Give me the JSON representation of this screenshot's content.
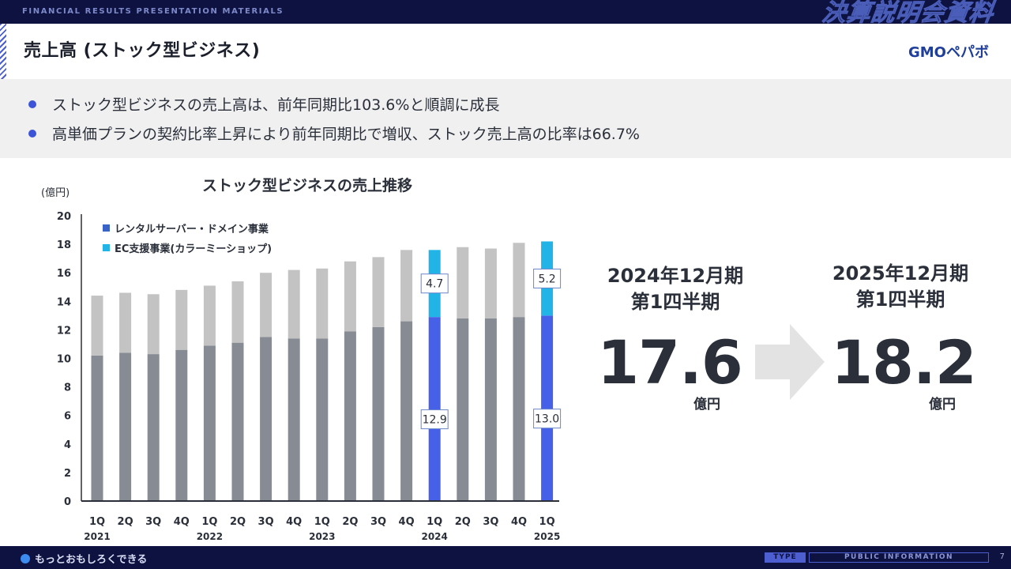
{
  "topbar": {
    "label": "FINANCIAL RESULTS PRESENTATION MATERIALS",
    "title": "決算説明会資料"
  },
  "header": {
    "title": "売上高 (ストック型ビジネス)",
    "logo": "GMOペパボ"
  },
  "bullets": [
    "ストック型ビジネスの売上高は、前年同期比103.6%と順調に成長",
    "高単価プランの契約比率上昇により前年同期比で増収、ストック売上高の比率は66.7%"
  ],
  "colors": {
    "rental_gray": "#878b94",
    "ec_gray": "#c3c3c3",
    "rental_highlight": "#4660e8",
    "ec_highlight": "#22b4e6",
    "accent": "#3c55d8",
    "nav": "#0d1240"
  },
  "chart_data": {
    "type": "bar",
    "stacked": true,
    "title": "ストック型ビジネスの売上推移",
    "ylabel": "(億円)",
    "ylim": [
      0,
      20
    ],
    "yticks": [
      0,
      2,
      4,
      6,
      8,
      10,
      12,
      14,
      16,
      18,
      20
    ],
    "categories": [
      "1Q",
      "2Q",
      "3Q",
      "4Q",
      "1Q",
      "2Q",
      "3Q",
      "4Q",
      "1Q",
      "2Q",
      "3Q",
      "4Q",
      "1Q",
      "2Q",
      "3Q",
      "4Q",
      "1Q"
    ],
    "years": [
      {
        "label": "2021",
        "index": 0
      },
      {
        "label": "2022",
        "index": 4
      },
      {
        "label": "2023",
        "index": 8
      },
      {
        "label": "2024",
        "index": 12
      },
      {
        "label": "2025",
        "index": 16
      }
    ],
    "highlight_indices": [
      12,
      16
    ],
    "series": [
      {
        "name": "レンタルサーバー・ドメイン事業",
        "values": [
          10.2,
          10.4,
          10.3,
          10.6,
          10.9,
          11.1,
          11.5,
          11.4,
          11.4,
          11.9,
          12.2,
          12.6,
          12.9,
          12.8,
          12.8,
          12.9,
          13.0
        ]
      },
      {
        "name": "EC支援事業(カラーミーショップ)",
        "values": [
          4.2,
          4.2,
          4.2,
          4.2,
          4.2,
          4.3,
          4.5,
          4.8,
          4.9,
          4.9,
          4.9,
          5.0,
          4.7,
          5.0,
          4.9,
          5.2,
          5.2
        ]
      }
    ],
    "data_labels": [
      {
        "index": 12,
        "rental": "12.9",
        "ec": "4.7"
      },
      {
        "index": 16,
        "rental": "13.0",
        "ec": "5.2"
      }
    ]
  },
  "comparison": {
    "before": {
      "period_line1": "2024年12月期",
      "period_line2": "第1四半期",
      "value": "17.6",
      "unit": "億円"
    },
    "after": {
      "period_line1": "2025年12月期",
      "period_line2": "第1四半期",
      "value": "18.2",
      "unit": "億円"
    }
  },
  "footer": {
    "tagline": "もっとおもしろくできる",
    "type_label": "TYPE",
    "type_value": "PUBLIC INFORMATION",
    "page": "7"
  }
}
